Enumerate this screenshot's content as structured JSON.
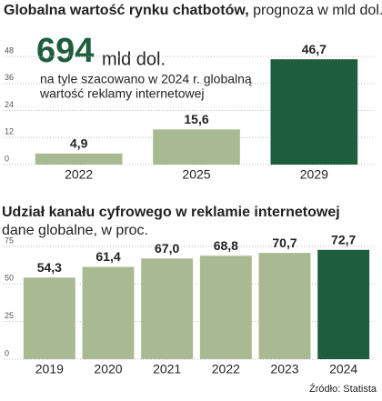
{
  "chart_data": [
    {
      "type": "bar",
      "title": "Globalna wartość rynku chatbotów,",
      "title_note": "prognoza w mld dol.",
      "annotation_value": "694",
      "annotation_unit": "mld dol.",
      "annotation_lines": [
        "na tyle szacowano w 2024 r. globalną",
        "wartość reklamy internetowej"
      ],
      "categories": [
        "2022",
        "2025",
        "2029"
      ],
      "values": [
        4.9,
        15.6,
        46.7
      ],
      "value_labels": [
        "4,9",
        "15,6",
        "46,7"
      ],
      "colors": [
        "#a9ba93",
        "#a9ba93",
        "#1e5e3e"
      ],
      "ylim": [
        0,
        50
      ],
      "yticks": [
        0,
        12,
        24,
        36,
        48
      ],
      "grid": true
    },
    {
      "type": "bar",
      "title": "Udział kanału cyfrowego w reklamie internetowej",
      "subtitle": "dane globalne, w proc.",
      "categories": [
        "2019",
        "2020",
        "2021",
        "2022",
        "2023",
        "2024"
      ],
      "values": [
        54.3,
        61.4,
        67.0,
        68.8,
        70.7,
        72.7
      ],
      "value_labels": [
        "54,3",
        "61,4",
        "67,0",
        "68,8",
        "70,7",
        "72,7"
      ],
      "colors": [
        "#a9ba93",
        "#a9ba93",
        "#a9ba93",
        "#a9ba93",
        "#a9ba93",
        "#1e5e3e"
      ],
      "ylim": [
        0,
        75
      ],
      "yticks": [
        0,
        25,
        50,
        75
      ],
      "grid": true
    }
  ],
  "source": "Źródło: Statista"
}
